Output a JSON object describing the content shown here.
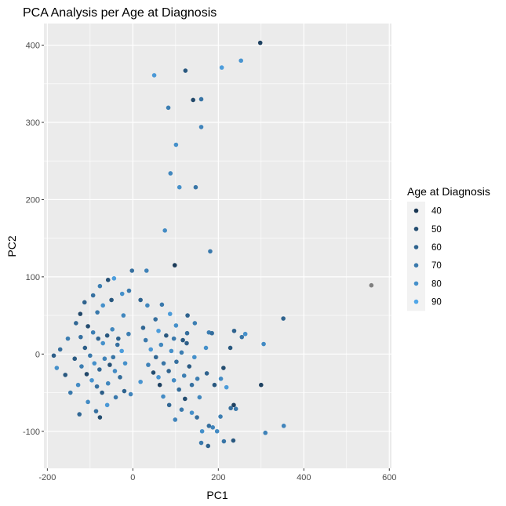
{
  "chart_data": {
    "type": "scatter",
    "title": "PCA Analysis per Age at Diagnosis",
    "xlabel": "PC1",
    "ylabel": "PC2",
    "xlim": [
      -208,
      605
    ],
    "ylim": [
      -148,
      428
    ],
    "x_ticks": [
      -200,
      0,
      200,
      400,
      600
    ],
    "y_ticks": [
      -100,
      0,
      100,
      200,
      300,
      400
    ],
    "x_tick_labels": [
      "-200",
      "0",
      "200",
      "400",
      "600"
    ],
    "y_tick_labels": [
      "-100",
      "0",
      "100",
      "200",
      "300",
      "400"
    ],
    "grid": true,
    "legend": {
      "title": "Age at Diagnosis",
      "position": "right",
      "entries": [
        {
          "label": "40",
          "value": 40
        },
        {
          "label": "50",
          "value": 50
        },
        {
          "label": "60",
          "value": 60
        },
        {
          "label": "70",
          "value": 70
        },
        {
          "label": "80",
          "value": 80
        },
        {
          "label": "90",
          "value": 90
        }
      ]
    },
    "color_scale": {
      "low": "#132b43",
      "high": "#56b1f7",
      "min": 35,
      "max": 95,
      "na": "#7f7f7f"
    },
    "points": [
      {
        "x": 298,
        "y": 403,
        "age": 45
      },
      {
        "x": 253,
        "y": 380,
        "age": 82
      },
      {
        "x": 208,
        "y": 371,
        "age": 86
      },
      {
        "x": 123,
        "y": 367,
        "age": 55
      },
      {
        "x": 50,
        "y": 361,
        "age": 84
      },
      {
        "x": 141,
        "y": 329,
        "age": 48
      },
      {
        "x": 160,
        "y": 330,
        "age": 68
      },
      {
        "x": 83,
        "y": 319,
        "age": 72
      },
      {
        "x": 160,
        "y": 294,
        "age": 75
      },
      {
        "x": 101,
        "y": 271,
        "age": 80
      },
      {
        "x": 88,
        "y": 234,
        "age": 76
      },
      {
        "x": 109,
        "y": 216,
        "age": 80
      },
      {
        "x": 147,
        "y": 216,
        "age": 68
      },
      {
        "x": 75,
        "y": 160,
        "age": 78
      },
      {
        "x": 181,
        "y": 133,
        "age": 70
      },
      {
        "x": 98,
        "y": 115,
        "age": 42
      },
      {
        "x": -2,
        "y": 108,
        "age": 66
      },
      {
        "x": 32,
        "y": 108,
        "age": 74
      },
      {
        "x": 558,
        "y": 89,
        "age": null
      },
      {
        "x": 352,
        "y": 46,
        "age": 60
      },
      {
        "x": 300,
        "y": -40,
        "age": 45
      },
      {
        "x": 353,
        "y": -93,
        "age": 75
      },
      {
        "x": 310,
        "y": -102,
        "age": 74
      },
      {
        "x": 306,
        "y": 13,
        "age": 78
      },
      {
        "x": 263,
        "y": 26,
        "age": 80
      },
      {
        "x": 255,
        "y": 22,
        "age": 68
      },
      {
        "x": 228,
        "y": 8,
        "age": 55
      },
      {
        "x": 237,
        "y": 30,
        "age": 60
      },
      {
        "x": 178,
        "y": 28,
        "age": 72
      },
      {
        "x": 185,
        "y": 27,
        "age": 65
      },
      {
        "x": 171,
        "y": 8,
        "age": 80
      },
      {
        "x": 212,
        "y": -18,
        "age": 50
      },
      {
        "x": 206,
        "y": -32,
        "age": 78
      },
      {
        "x": 191,
        "y": -40,
        "age": 55
      },
      {
        "x": 219,
        "y": -43,
        "age": 85
      },
      {
        "x": 229,
        "y": -70,
        "age": 65
      },
      {
        "x": 236,
        "y": -66,
        "age": 45
      },
      {
        "x": 241,
        "y": -71,
        "age": 70
      },
      {
        "x": 205,
        "y": -81,
        "age": 72
      },
      {
        "x": 178,
        "y": -93,
        "age": 65
      },
      {
        "x": 162,
        "y": -100,
        "age": 80
      },
      {
        "x": 187,
        "y": -95,
        "age": 75
      },
      {
        "x": 160,
        "y": -115,
        "age": 70
      },
      {
        "x": 176,
        "y": -119,
        "age": 60
      },
      {
        "x": 213,
        "y": -113,
        "age": 68
      },
      {
        "x": 235,
        "y": -112,
        "age": 55
      },
      {
        "x": 197,
        "y": -100,
        "age": 78
      },
      {
        "x": 150,
        "y": -82,
        "age": 65
      },
      {
        "x": 138,
        "y": -76,
        "age": 80
      },
      {
        "x": 114,
        "y": -72,
        "age": 70
      },
      {
        "x": 99,
        "y": -85,
        "age": 75
      },
      {
        "x": 122,
        "y": -58,
        "age": 50
      },
      {
        "x": 85,
        "y": -66,
        "age": 62
      },
      {
        "x": 71,
        "y": -55,
        "age": 78
      },
      {
        "x": 63,
        "y": -40,
        "age": 45
      },
      {
        "x": 151,
        "y": -32,
        "age": 72
      },
      {
        "x": 173,
        "y": -25,
        "age": 60
      },
      {
        "x": 127,
        "y": 27,
        "age": 65
      },
      {
        "x": 117,
        "y": 18,
        "age": 55
      },
      {
        "x": 101,
        "y": 37,
        "age": 80
      },
      {
        "x": 128,
        "y": 50,
        "age": 60
      },
      {
        "x": 145,
        "y": 40,
        "age": 72
      },
      {
        "x": 87,
        "y": 52,
        "age": 85
      },
      {
        "x": 68,
        "y": 64,
        "age": 70
      },
      {
        "x": 53,
        "y": 45,
        "age": 65
      },
      {
        "x": 34,
        "y": 63,
        "age": 76
      },
      {
        "x": 18,
        "y": 70,
        "age": 60
      },
      {
        "x": -9,
        "y": 82,
        "age": 70
      },
      {
        "x": -25,
        "y": 78,
        "age": 80
      },
      {
        "x": -44,
        "y": 98,
        "age": 86
      },
      {
        "x": -58,
        "y": 96,
        "age": 52
      },
      {
        "x": -77,
        "y": 88,
        "age": 72
      },
      {
        "x": -93,
        "y": 76,
        "age": 66
      },
      {
        "x": -113,
        "y": 67,
        "age": 60
      },
      {
        "x": -70,
        "y": 63,
        "age": 80
      },
      {
        "x": -50,
        "y": 70,
        "age": 55
      },
      {
        "x": -22,
        "y": 50,
        "age": 76
      },
      {
        "x": -83,
        "y": 54,
        "age": 70
      },
      {
        "x": -123,
        "y": 52,
        "age": 48
      },
      {
        "x": -133,
        "y": 40,
        "age": 62
      },
      {
        "x": -152,
        "y": 20,
        "age": 72
      },
      {
        "x": -170,
        "y": 6,
        "age": 65
      },
      {
        "x": -185,
        "y": -2,
        "age": 58
      },
      {
        "x": -178,
        "y": -18,
        "age": 80
      },
      {
        "x": -158,
        "y": -27,
        "age": 55
      },
      {
        "x": -146,
        "y": -50,
        "age": 70
      },
      {
        "x": -125,
        "y": -78,
        "age": 62
      },
      {
        "x": -105,
        "y": -62,
        "age": 78
      },
      {
        "x": -86,
        "y": -74,
        "age": 66
      },
      {
        "x": -77,
        "y": -82,
        "age": 50
      },
      {
        "x": -60,
        "y": -66,
        "age": 84
      },
      {
        "x": -40,
        "y": -56,
        "age": 70
      },
      {
        "x": -20,
        "y": -48,
        "age": 60
      },
      {
        "x": -5,
        "y": -52,
        "age": 75
      },
      {
        "x": 18,
        "y": -36,
        "age": 82
      },
      {
        "x": -105,
        "y": 36,
        "age": 50
      },
      {
        "x": -93,
        "y": 28,
        "age": 72
      },
      {
        "x": -81,
        "y": 20,
        "age": 62
      },
      {
        "x": -70,
        "y": 14,
        "age": 80
      },
      {
        "x": -60,
        "y": 24,
        "age": 55
      },
      {
        "x": -48,
        "y": 32,
        "age": 76
      },
      {
        "x": -36,
        "y": 12,
        "age": 66
      },
      {
        "x": -26,
        "y": 4,
        "age": 86
      },
      {
        "x": -112,
        "y": 8,
        "age": 58
      },
      {
        "x": -100,
        "y": -2,
        "age": 70
      },
      {
        "x": -90,
        "y": -12,
        "age": 80
      },
      {
        "x": -78,
        "y": -20,
        "age": 62
      },
      {
        "x": -66,
        "y": -6,
        "age": 74
      },
      {
        "x": -54,
        "y": -14,
        "age": 52
      },
      {
        "x": -42,
        "y": -22,
        "age": 78
      },
      {
        "x": -30,
        "y": -30,
        "age": 64
      },
      {
        "x": -120,
        "y": -16,
        "age": 72
      },
      {
        "x": -108,
        "y": -26,
        "age": 48
      },
      {
        "x": -96,
        "y": -34,
        "age": 82
      },
      {
        "x": -84,
        "y": -42,
        "age": 66
      },
      {
        "x": -72,
        "y": -50,
        "age": 58
      },
      {
        "x": -58,
        "y": -38,
        "age": 76
      },
      {
        "x": -46,
        "y": -4,
        "age": 68
      },
      {
        "x": -34,
        "y": 20,
        "age": 60
      },
      {
        "x": -18,
        "y": -12,
        "age": 80
      },
      {
        "x": -10,
        "y": 26,
        "age": 72
      },
      {
        "x": -122,
        "y": 22,
        "age": 66
      },
      {
        "x": -136,
        "y": -6,
        "age": 56
      },
      {
        "x": -128,
        "y": -40,
        "age": 78
      },
      {
        "x": 30,
        "y": 18,
        "age": 70
      },
      {
        "x": 42,
        "y": 6,
        "age": 84
      },
      {
        "x": 54,
        "y": -4,
        "age": 62
      },
      {
        "x": 66,
        "y": 12,
        "age": 76
      },
      {
        "x": 78,
        "y": 24,
        "age": 55
      },
      {
        "x": 90,
        "y": 4,
        "age": 80
      },
      {
        "x": 102,
        "y": -10,
        "age": 66
      },
      {
        "x": 114,
        "y": 2,
        "age": 72
      },
      {
        "x": 126,
        "y": 14,
        "age": 58
      },
      {
        "x": 36,
        "y": -14,
        "age": 74
      },
      {
        "x": 48,
        "y": -24,
        "age": 50
      },
      {
        "x": 60,
        "y": -30,
        "age": 82
      },
      {
        "x": 72,
        "y": -12,
        "age": 68
      },
      {
        "x": 84,
        "y": -22,
        "age": 60
      },
      {
        "x": 96,
        "y": -34,
        "age": 78
      },
      {
        "x": 108,
        "y": -46,
        "age": 64
      },
      {
        "x": 120,
        "y": -28,
        "age": 72
      },
      {
        "x": 132,
        "y": -16,
        "age": 56
      },
      {
        "x": 144,
        "y": -4,
        "age": 80
      },
      {
        "x": 24,
        "y": 34,
        "age": 62
      },
      {
        "x": 60,
        "y": 30,
        "age": 86
      },
      {
        "x": 96,
        "y": 20,
        "age": 70
      },
      {
        "x": 138,
        "y": -40,
        "age": 66
      },
      {
        "x": 156,
        "y": -56,
        "age": 76
      }
    ]
  }
}
